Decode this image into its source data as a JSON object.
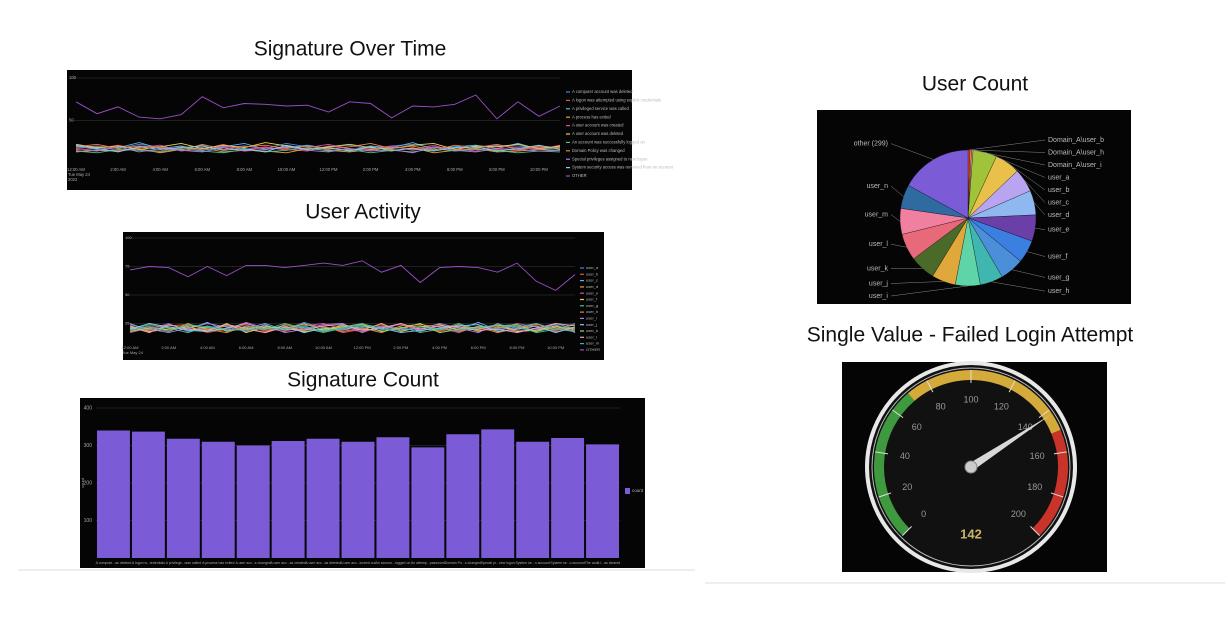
{
  "chart_data": [
    {
      "type": "line",
      "title": "Signature Over Time",
      "categories": [
        "12:00 AM",
        null,
        "2:00 AM",
        null,
        "4:00 AM",
        null,
        "6:00 AM",
        null,
        "8:00 AM",
        null,
        "10:00 AM",
        null,
        "12:00 PM",
        null,
        "2:00 PM",
        null,
        "4:00 PM",
        null,
        "6:00 PM",
        null,
        "8:00 PM",
        null,
        "10:00 PM",
        null
      ],
      "x_note": [
        "Tue May 24",
        "2022"
      ],
      "ylim": [
        0,
        100
      ],
      "yticks": [
        50,
        100
      ],
      "grid": true,
      "legend": "right",
      "series": [
        {
          "name": "A computer account was deleted",
          "color": "#4f7fe0",
          "values": [
            18,
            20,
            17,
            22,
            19,
            16,
            21,
            18,
            20,
            17,
            23,
            19,
            18,
            21,
            16,
            20,
            22,
            18,
            19,
            17,
            21,
            20,
            18,
            19
          ]
        },
        {
          "name": "A logon was attempted using explicit credentials",
          "color": "#e0524f",
          "values": [
            15,
            17,
            21,
            16,
            14,
            19,
            16,
            22,
            15,
            18,
            16,
            14,
            20,
            17,
            15,
            19,
            16,
            21,
            14,
            18,
            16,
            15,
            19,
            17
          ]
        },
        {
          "name": "A privileged service was called",
          "color": "#5ab3e6",
          "values": [
            20,
            16,
            18,
            24,
            17,
            20,
            15,
            19,
            23,
            16,
            18,
            21,
            17,
            15,
            20,
            18,
            24,
            16,
            19,
            21,
            17,
            23,
            16,
            18
          ]
        },
        {
          "name": "A process has exited",
          "color": "#e8a33a",
          "values": [
            13,
            15,
            14,
            17,
            12,
            16,
            18,
            13,
            15,
            14,
            12,
            17,
            15,
            13,
            16,
            14,
            18,
            12,
            15,
            17,
            13,
            14,
            16,
            15
          ]
        },
        {
          "name": "A user account was created",
          "color": "#d94f9c",
          "values": [
            17,
            19,
            15,
            18,
            21,
            14,
            17,
            20,
            16,
            19,
            15,
            18,
            22,
            16,
            17,
            20,
            15,
            19,
            17,
            14,
            20,
            18,
            16,
            21
          ]
        },
        {
          "name": "A user account was deleted",
          "color": "#e6d24a",
          "values": [
            22,
            18,
            20,
            16,
            19,
            23,
            17,
            21,
            18,
            24,
            20,
            16,
            19,
            22,
            18,
            17,
            21,
            23,
            16,
            20,
            19,
            22,
            17,
            20
          ]
        },
        {
          "name": "An account was successfully logged on",
          "color": "#4fbf8a",
          "values": [
            14,
            12,
            16,
            15,
            13,
            17,
            14,
            12,
            16,
            13,
            15,
            18,
            14,
            16,
            12,
            15,
            13,
            17,
            14,
            16,
            15,
            12,
            14,
            13
          ]
        },
        {
          "name": "Domain Policy was changed",
          "color": "#f07f3a",
          "values": [
            19,
            22,
            17,
            20,
            18,
            15,
            22,
            16,
            19,
            21,
            17,
            20,
            16,
            19,
            23,
            17,
            20,
            15,
            21,
            18,
            22,
            16,
            20,
            18
          ]
        },
        {
          "name": "Special privileges assigned to new logon",
          "color": "#b07fe0",
          "values": [
            16,
            14,
            19,
            13,
            17,
            15,
            13,
            18,
            14,
            16,
            19,
            15,
            13,
            17,
            14,
            16,
            12,
            19,
            15,
            13,
            17,
            16,
            14,
            15
          ]
        },
        {
          "name": "System security access was removed from an account",
          "color": "#7fd0f0",
          "values": [
            21,
            17,
            13,
            19,
            16,
            18,
            20,
            15,
            17,
            13,
            21,
            16,
            18,
            14,
            19,
            15,
            17,
            14,
            18,
            19,
            14,
            17,
            21,
            16
          ]
        },
        {
          "name": "OTHER",
          "color": "#9a4fc9",
          "values": [
            72,
            58,
            66,
            54,
            52,
            57,
            78,
            65,
            70,
            69,
            67,
            68,
            60,
            72,
            70,
            53,
            67,
            66,
            69,
            80,
            52,
            72,
            55,
            67
          ]
        }
      ]
    },
    {
      "type": "line",
      "title": "User Activity",
      "categories": [
        "12:00 AM",
        null,
        "2:00 AM",
        null,
        "4:00 AM",
        null,
        "6:00 AM",
        null,
        "8:00 AM",
        null,
        "10:00 AM",
        null,
        "12:00 PM",
        null,
        "2:00 PM",
        null,
        "4:00 PM",
        null,
        "6:00 PM",
        null,
        "8:00 PM",
        null,
        "10:00 PM",
        null
      ],
      "x_note": [
        "Tue May 24"
      ],
      "ylim": [
        0,
        100
      ],
      "yticks": [
        25,
        50,
        75,
        100
      ],
      "grid": true,
      "legend": "right",
      "series": [
        {
          "name": "user_a",
          "color": "#4f7fe0",
          "values": [
            22,
            20,
            25,
            18,
            21,
            24,
            19,
            23,
            20,
            26,
            21,
            19,
            24,
            22,
            20,
            25,
            18,
            23,
            21,
            19,
            24,
            20,
            22,
            21
          ]
        },
        {
          "name": "user_b",
          "color": "#e0524f",
          "values": [
            18,
            23,
            19,
            22,
            17,
            20,
            24,
            18,
            22,
            19,
            23,
            17,
            20,
            24,
            19,
            21,
            18,
            22,
            20,
            23,
            17,
            21,
            19,
            24
          ]
        },
        {
          "name": "user_c",
          "color": "#5ab3e6",
          "values": [
            25,
            19,
            22,
            20,
            26,
            18,
            21,
            25,
            19,
            22,
            18,
            24,
            20,
            19,
            25,
            18,
            23,
            20,
            26,
            19,
            22,
            18,
            25,
            20
          ]
        },
        {
          "name": "user_d",
          "color": "#e8a33a",
          "values": [
            20,
            22,
            18,
            25,
            19,
            23,
            20,
            17,
            24,
            20,
            19,
            22,
            25,
            18,
            21,
            23,
            19,
            24,
            18,
            22,
            20,
            25,
            19,
            22
          ]
        },
        {
          "name": "user_e",
          "color": "#d94f9c",
          "values": [
            17,
            21,
            24,
            19,
            22,
            20,
            26,
            21,
            18,
            23,
            25,
            20,
            18,
            22,
            24,
            19,
            21,
            17,
            23,
            20,
            25,
            22,
            18,
            20
          ]
        },
        {
          "name": "user_f",
          "color": "#e6d24a",
          "values": [
            23,
            18,
            20,
            22,
            18,
            25,
            17,
            22,
            21,
            18,
            20,
            23,
            19,
            25,
            18,
            22,
            24,
            19,
            20,
            24,
            18,
            19,
            23,
            18
          ]
        },
        {
          "name": "user_g",
          "color": "#4fbf8a",
          "values": [
            19,
            24,
            21,
            17,
            23,
            19,
            22,
            20,
            25,
            21,
            17,
            21,
            23,
            20,
            22,
            17,
            20,
            25,
            19,
            21,
            23,
            17,
            20,
            25
          ]
        },
        {
          "name": "user_h",
          "color": "#f07f3a",
          "values": [
            21,
            19,
            23,
            24,
            20,
            17,
            23,
            19,
            21,
            24,
            22,
            18,
            21,
            17,
            23,
            24,
            22,
            18,
            22,
            17,
            21,
            24,
            21,
            19
          ]
        },
        {
          "name": "user_i",
          "color": "#b07fe0",
          "values": [
            24,
            20,
            17,
            21,
            25,
            22,
            18,
            24,
            17,
            20,
            24,
            25,
            17,
            23,
            20,
            20,
            25,
            21,
            17,
            25,
            19,
            20,
            24,
            17
          ]
        },
        {
          "name": "user_j",
          "color": "#7fd0f0",
          "values": [
            20,
            25,
            22,
            19,
            18,
            21,
            25,
            20,
            23,
            17,
            21,
            20,
            22,
            21,
            17,
            19,
            21,
            23,
            24,
            18,
            20,
            23,
            17,
            22
          ]
        },
        {
          "name": "user_k",
          "color": "#9fd45a",
          "values": [
            18,
            21,
            20,
            23,
            21,
            19,
            20,
            23,
            19,
            25,
            19,
            22,
            24,
            18,
            21,
            25,
            17,
            20,
            22,
            23,
            24,
            18,
            22,
            20
          ]
        },
        {
          "name": "user_l",
          "color": "#f2a0c0",
          "values": [
            22,
            17,
            24,
            20,
            19,
            24,
            21,
            17,
            22,
            19,
            23,
            24,
            19,
            21,
            25,
            20,
            23,
            22,
            19,
            20,
            17,
            21,
            25,
            23
          ]
        },
        {
          "name": "user_m",
          "color": "#3fb6b0",
          "values": [
            19,
            22,
            18,
            24,
            22,
            20,
            19,
            21,
            20,
            23,
            18,
            21,
            25,
            20,
            19,
            22,
            20,
            19,
            21,
            24,
            22,
            25,
            20,
            18
          ]
        },
        {
          "name": "OTHER",
          "color": "#9a4fc9",
          "values": [
            72,
            75,
            74,
            66,
            75,
            67,
            76,
            76,
            74,
            76,
            78,
            76,
            80,
            70,
            76,
            61,
            74,
            75,
            74,
            70,
            78,
            62,
            54,
            68
          ]
        }
      ]
    },
    {
      "type": "bar",
      "title": "Signature Count",
      "y_label": "count",
      "categories": [
        "A compute...as deleted",
        "A logon w...redentials",
        "A privilege...was called",
        "A process has exited",
        "A user acc...s changed",
        "A user acc...as created",
        "A user acc...as deleted",
        "A user acc...locked out",
        "An accoun...logged on",
        "An attemp...password",
        "Domain Po...s changed",
        "Special pr...new logon",
        "System se...n account",
        "System se...o account",
        "The audit l...as cleared"
      ],
      "ylim": [
        0,
        400
      ],
      "yticks": [
        100,
        200,
        300,
        400
      ],
      "grid": true,
      "legend": "right",
      "series": [
        {
          "name": "count",
          "color": "#7b5bd6",
          "values": [
            340,
            337,
            318,
            310,
            300,
            312,
            318,
            310,
            322,
            295,
            330,
            343,
            310,
            320,
            303
          ]
        }
      ]
    },
    {
      "type": "pie",
      "title": "User Count",
      "categories": [
        "Domain_A\\user_b",
        "Domain_A\\user_h",
        "Domain_A\\user_i",
        "user_a",
        "user_b",
        "user_c",
        "user_d",
        "user_e",
        "user_f",
        "user_g",
        "user_h",
        "user_i",
        "user_j",
        "user_k",
        "user_l",
        "user_m",
        "user_n",
        "other (299)"
      ],
      "values": [
        8,
        7,
        6,
        100,
        105,
        98,
        102,
        110,
        95,
        100,
        96,
        104,
        100,
        106,
        112,
        108,
        100,
        299
      ],
      "colors": [
        "#e8443a",
        "#f07f3a",
        "#f2a0c0",
        "#9fc43a",
        "#e8c04a",
        "#b8a4f0",
        "#8fb8f0",
        "#6a3fa8",
        "#3b7fe0",
        "#4a8fd8",
        "#3fb6b0",
        "#5fd4a8",
        "#e0a83a",
        "#4a6a2a",
        "#e86a7a",
        "#f07fa0",
        "#2f6aa0",
        "#7b5bd6"
      ]
    },
    {
      "type": "gauge",
      "title": "Single Value - Failed Login Attempt",
      "value": 142,
      "range": [
        0,
        200
      ],
      "ticks": [
        0,
        20,
        40,
        60,
        80,
        100,
        120,
        140,
        160,
        180,
        200
      ],
      "bands": [
        {
          "from": 0,
          "to": 70,
          "color": "#3f9a3f"
        },
        {
          "from": 70,
          "to": 150,
          "color": "#d4aa3a"
        },
        {
          "from": 150,
          "to": 200,
          "color": "#c8332a"
        }
      ]
    }
  ]
}
